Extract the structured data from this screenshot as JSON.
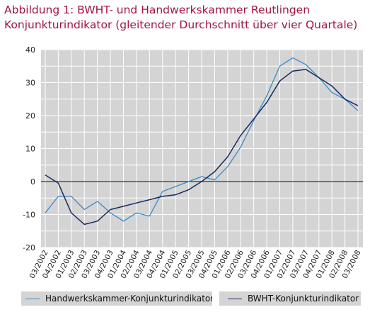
{
  "title": {
    "line1": "Abbildung 1: BWHT- und Handwerkskammer  Reutlingen",
    "line2": "Konjunkturindikator (gleitender Durchschnitt über vier Quartale)"
  },
  "colors": {
    "background": "#ffffff",
    "plot_background": "#d4d4d4",
    "title": "#a0153e",
    "series_hwk": "#3a8ac8",
    "series_bwht": "#1a2a5e",
    "zero_line": "#333333"
  },
  "chart_data": {
    "type": "line",
    "title": "Abbildung 1: BWHT- und Handwerkskammer  Reutlingen Konjunkturindikator (gleitender Durchschnitt über vier Quartale)",
    "xlabel": "",
    "ylabel": "",
    "ylim": [
      -20,
      40
    ],
    "yticks": [
      -20,
      -10,
      0,
      10,
      20,
      30,
      40
    ],
    "grid": true,
    "legend_position": "bottom",
    "categories": [
      "03/2002",
      "04/2002",
      "01/2003",
      "02/2003",
      "03/2003",
      "04/2003",
      "01/2004",
      "02/2004",
      "03/2004",
      "04/2004",
      "01/2005",
      "02/2005",
      "03/2005",
      "04/2005",
      "01/2006",
      "02/2006",
      "03/2006",
      "04/2006",
      "01/2007",
      "02/2007",
      "03/2007",
      "04/2007",
      "01/2008",
      "02/2008",
      "03/2008"
    ],
    "series": [
      {
        "name": "Handwerkskammer-Konjunkturindikator",
        "color": "#3a8ac8",
        "values": [
          -9.5,
          -4.5,
          -4.5,
          -8.5,
          -6.0,
          -9.5,
          -12.0,
          -9.5,
          -10.5,
          -3.0,
          -1.5,
          0.0,
          1.5,
          0.5,
          4.5,
          10.5,
          18.5,
          26.0,
          35.0,
          37.5,
          35.5,
          31.5,
          27.0,
          25.0,
          21.5
        ]
      },
      {
        "name": "BWHT-Konjunkturindikator",
        "color": "#1a2a5e",
        "values": [
          2.0,
          -0.5,
          -9.5,
          -13.0,
          -12.0,
          -8.5,
          -7.5,
          -6.5,
          -5.5,
          -4.5,
          -4.0,
          -2.5,
          0.0,
          3.0,
          7.5,
          14.0,
          19.0,
          24.0,
          30.5,
          33.5,
          34.0,
          31.5,
          29.0,
          25.0,
          23.0
        ]
      }
    ]
  }
}
